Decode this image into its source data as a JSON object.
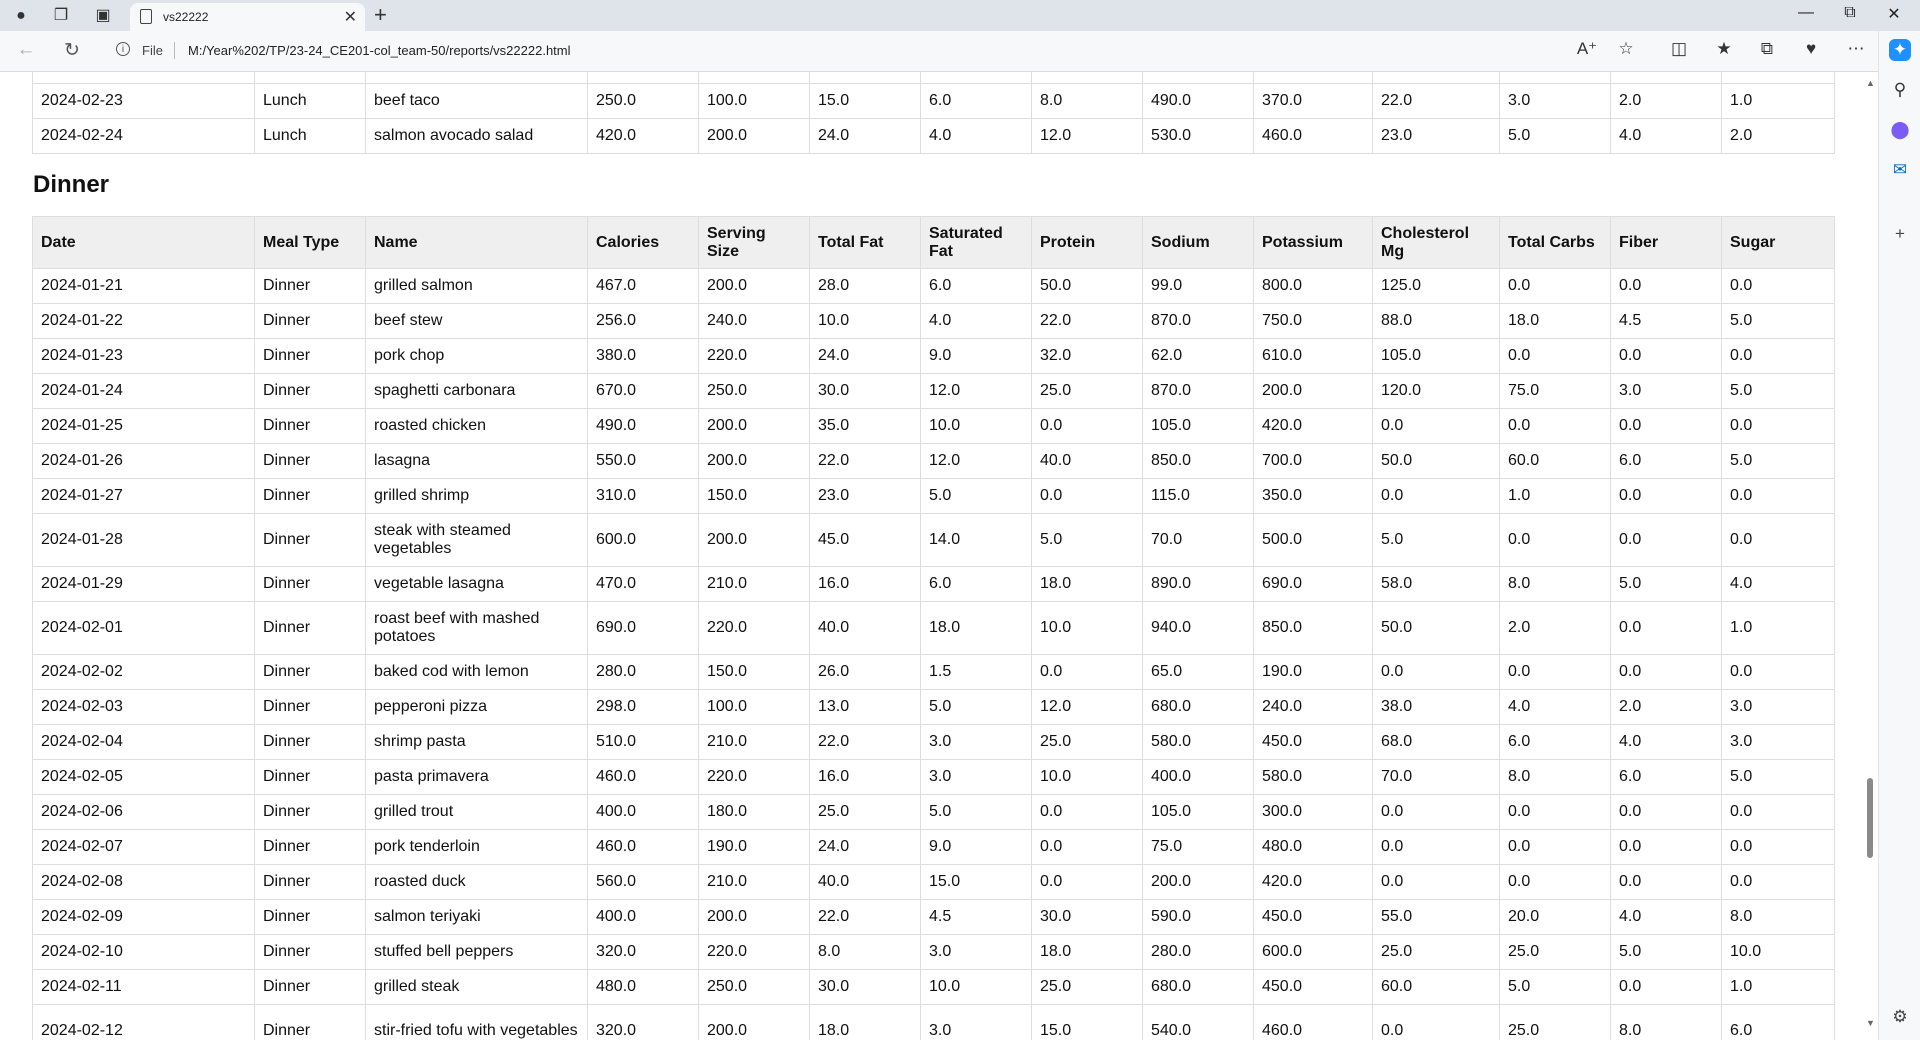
{
  "browser": {
    "tab_title": "vs22222",
    "address_prefix": "File",
    "url": "M:/Year%202/TP/23-24_CE201-col_team-50/reports/vs22222.html"
  },
  "lunch_partial": [
    [
      "",
      "",
      "",
      "",
      "",
      "",
      "",
      "",
      "",
      "",
      "",
      "",
      "",
      "",
      ""
    ],
    [
      "2024-02-23",
      "Lunch",
      "beef taco",
      "250.0",
      "100.0",
      "15.0",
      "6.0",
      "8.0",
      "490.0",
      "370.0",
      "22.0",
      "3.0",
      "2.0",
      "1.0"
    ],
    [
      "2024-02-24",
      "Lunch",
      "salmon avocado salad",
      "420.0",
      "200.0",
      "24.0",
      "4.0",
      "12.0",
      "530.0",
      "460.0",
      "23.0",
      "5.0",
      "4.0",
      "2.0"
    ]
  ],
  "dinner": {
    "heading": "Dinner",
    "headers": [
      "Date",
      "Meal Type",
      "Name",
      "Calories",
      "Serving Size",
      "Total Fat",
      "Saturated Fat",
      "Protein",
      "Sodium",
      "Potassium",
      "Cholesterol Mg",
      "Total Carbs",
      "Fiber",
      "Sugar"
    ],
    "rows": [
      [
        "2024-01-21",
        "Dinner",
        "grilled salmon",
        "467.0",
        "200.0",
        "28.0",
        "6.0",
        "50.0",
        "99.0",
        "800.0",
        "125.0",
        "0.0",
        "0.0",
        "0.0"
      ],
      [
        "2024-01-22",
        "Dinner",
        "beef stew",
        "256.0",
        "240.0",
        "10.0",
        "4.0",
        "22.0",
        "870.0",
        "750.0",
        "88.0",
        "18.0",
        "4.5",
        "5.0"
      ],
      [
        "2024-01-23",
        "Dinner",
        "pork chop",
        "380.0",
        "220.0",
        "24.0",
        "9.0",
        "32.0",
        "62.0",
        "610.0",
        "105.0",
        "0.0",
        "0.0",
        "0.0"
      ],
      [
        "2024-01-24",
        "Dinner",
        "spaghetti carbonara",
        "670.0",
        "250.0",
        "30.0",
        "12.0",
        "25.0",
        "870.0",
        "200.0",
        "120.0",
        "75.0",
        "3.0",
        "5.0"
      ],
      [
        "2024-01-25",
        "Dinner",
        "roasted chicken",
        "490.0",
        "200.0",
        "35.0",
        "10.0",
        "0.0",
        "105.0",
        "420.0",
        "0.0",
        "0.0",
        "0.0",
        "0.0"
      ],
      [
        "2024-01-26",
        "Dinner",
        "lasagna",
        "550.0",
        "200.0",
        "22.0",
        "12.0",
        "40.0",
        "850.0",
        "700.0",
        "50.0",
        "60.0",
        "6.0",
        "5.0"
      ],
      [
        "2024-01-27",
        "Dinner",
        "grilled shrimp",
        "310.0",
        "150.0",
        "23.0",
        "5.0",
        "0.0",
        "115.0",
        "350.0",
        "0.0",
        "1.0",
        "0.0",
        "0.0"
      ],
      [
        "2024-01-28",
        "Dinner",
        "steak with steamed vegetables",
        "600.0",
        "200.0",
        "45.0",
        "14.0",
        "5.0",
        "70.0",
        "500.0",
        "5.0",
        "0.0",
        "0.0",
        "0.0"
      ],
      [
        "2024-01-29",
        "Dinner",
        "vegetable lasagna",
        "470.0",
        "210.0",
        "16.0",
        "6.0",
        "18.0",
        "890.0",
        "690.0",
        "58.0",
        "8.0",
        "5.0",
        "4.0"
      ],
      [
        "2024-02-01",
        "Dinner",
        "roast beef with mashed potatoes",
        "690.0",
        "220.0",
        "40.0",
        "18.0",
        "10.0",
        "940.0",
        "850.0",
        "50.0",
        "2.0",
        "0.0",
        "1.0"
      ],
      [
        "2024-02-02",
        "Dinner",
        "baked cod with lemon",
        "280.0",
        "150.0",
        "26.0",
        "1.5",
        "0.0",
        "65.0",
        "190.0",
        "0.0",
        "0.0",
        "0.0",
        "0.0"
      ],
      [
        "2024-02-03",
        "Dinner",
        "pepperoni pizza",
        "298.0",
        "100.0",
        "13.0",
        "5.0",
        "12.0",
        "680.0",
        "240.0",
        "38.0",
        "4.0",
        "2.0",
        "3.0"
      ],
      [
        "2024-02-04",
        "Dinner",
        "shrimp pasta",
        "510.0",
        "210.0",
        "22.0",
        "3.0",
        "25.0",
        "580.0",
        "450.0",
        "68.0",
        "6.0",
        "4.0",
        "3.0"
      ],
      [
        "2024-02-05",
        "Dinner",
        "pasta primavera",
        "460.0",
        "220.0",
        "16.0",
        "3.0",
        "10.0",
        "400.0",
        "580.0",
        "70.0",
        "8.0",
        "6.0",
        "5.0"
      ],
      [
        "2024-02-06",
        "Dinner",
        "grilled trout",
        "400.0",
        "180.0",
        "25.0",
        "5.0",
        "0.0",
        "105.0",
        "300.0",
        "0.0",
        "0.0",
        "0.0",
        "0.0"
      ],
      [
        "2024-02-07",
        "Dinner",
        "pork tenderloin",
        "460.0",
        "190.0",
        "24.0",
        "9.0",
        "0.0",
        "75.0",
        "480.0",
        "0.0",
        "0.0",
        "0.0",
        "0.0"
      ],
      [
        "2024-02-08",
        "Dinner",
        "roasted duck",
        "560.0",
        "210.0",
        "40.0",
        "15.0",
        "0.0",
        "200.0",
        "420.0",
        "0.0",
        "0.0",
        "0.0",
        "0.0"
      ],
      [
        "2024-02-09",
        "Dinner",
        "salmon teriyaki",
        "400.0",
        "200.0",
        "22.0",
        "4.5",
        "30.0",
        "590.0",
        "450.0",
        "55.0",
        "20.0",
        "4.0",
        "8.0"
      ],
      [
        "2024-02-10",
        "Dinner",
        "stuffed bell peppers",
        "320.0",
        "220.0",
        "8.0",
        "3.0",
        "18.0",
        "280.0",
        "600.0",
        "25.0",
        "25.0",
        "5.0",
        "10.0"
      ],
      [
        "2024-02-11",
        "Dinner",
        "grilled steak",
        "480.0",
        "250.0",
        "30.0",
        "10.0",
        "25.0",
        "680.0",
        "450.0",
        "60.0",
        "5.0",
        "0.0",
        "1.0"
      ],
      [
        "2024-02-12",
        "Dinner",
        "stir-fried tofu with vegetables",
        "320.0",
        "200.0",
        "18.0",
        "3.0",
        "15.0",
        "540.0",
        "460.0",
        "0.0",
        "25.0",
        "8.0",
        "6.0"
      ]
    ]
  }
}
